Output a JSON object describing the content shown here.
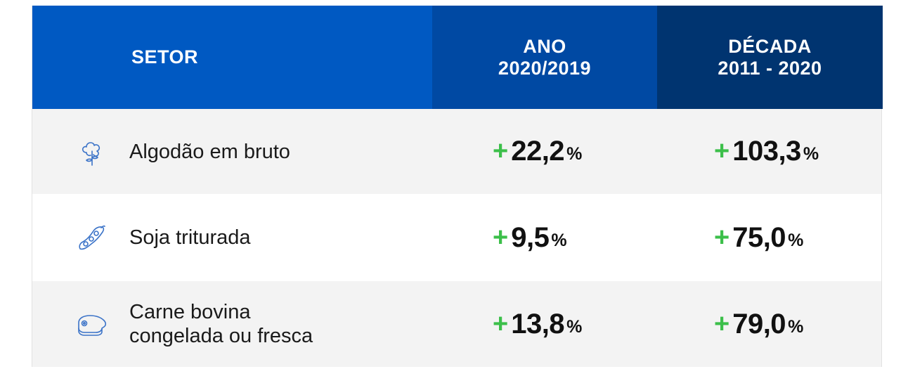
{
  "colors": {
    "header_setor": "#0059c2",
    "header_ano": "#0049a3",
    "header_decada": "#003470",
    "plus_green": "#3cbf4a",
    "icon_blue": "#3b73c8",
    "row_alt": "#f3f3f3"
  },
  "header": {
    "setor": "SETOR",
    "ano_line1": "ANO",
    "ano_line2": "2020/2019",
    "decada_line1": "DÉCADA",
    "decada_line2": "2011 - 2020"
  },
  "rows": [
    {
      "icon": "cotton-plant-icon",
      "sector": "Algodão em bruto",
      "sector_line2": "",
      "ano_sign": "+",
      "ano_value": "22,2",
      "ano_unit": "%",
      "decada_sign": "+",
      "decada_value": "103,3",
      "decada_unit": "%"
    },
    {
      "icon": "soybean-pod-icon",
      "sector": "Soja triturada",
      "sector_line2": "",
      "ano_sign": "+",
      "ano_value": "9,5",
      "ano_unit": "%",
      "decada_sign": "+",
      "decada_value": "75,0",
      "decada_unit": "%"
    },
    {
      "icon": "beef-steak-icon",
      "sector": "Carne bovina",
      "sector_line2": "congelada ou fresca",
      "ano_sign": "+",
      "ano_value": "13,8",
      "ano_unit": "%",
      "decada_sign": "+",
      "decada_value": "79,0",
      "decada_unit": "%"
    }
  ]
}
